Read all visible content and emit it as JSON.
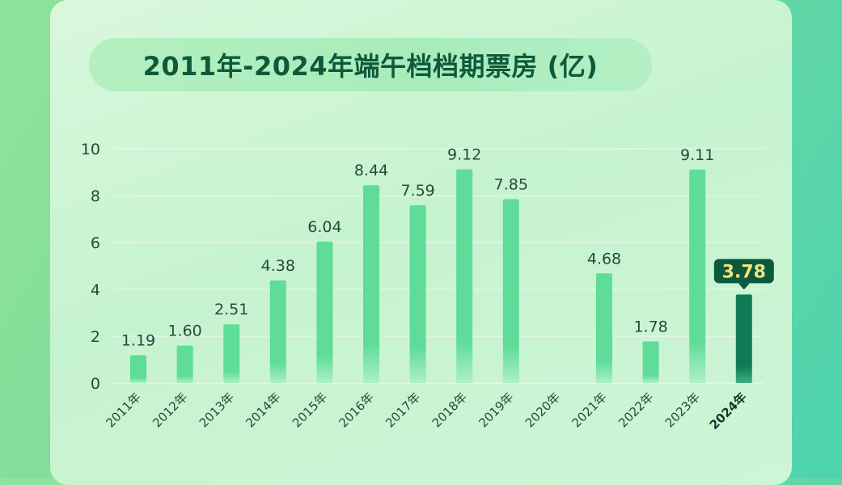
{
  "page": {
    "title": "2011年-2024年端午档档期票房 (亿)"
  },
  "colors": {
    "bar": "#5edc98",
    "bar_highlight": "#0f7a55",
    "callout_bg": "#0b5a40",
    "callout_text": "#f6e27a",
    "text": "#244b3b",
    "grid": "#e4f6e8"
  },
  "chart_data": {
    "type": "bar",
    "title": "2011年-2024年端午档档期票房 (亿)",
    "xlabel": "",
    "ylabel": "",
    "ylim": [
      0,
      10
    ],
    "yticks": [
      0,
      2,
      4,
      6,
      8,
      10
    ],
    "grid": true,
    "categories": [
      "2011年",
      "2012年",
      "2013年",
      "2014年",
      "2015年",
      "2016年",
      "2017年",
      "2018年",
      "2019年",
      "2020年",
      "2021年",
      "2022年",
      "2023年",
      "2024年"
    ],
    "values": [
      1.19,
      1.6,
      2.51,
      4.38,
      6.04,
      8.44,
      7.59,
      9.12,
      7.85,
      null,
      4.68,
      1.78,
      9.11,
      3.78
    ],
    "data_labels": [
      "1.19",
      "1.60",
      "2.51",
      "4.38",
      "6.04",
      "8.44",
      "7.59",
      "9.12",
      "7.85",
      "",
      "4.68",
      "1.78",
      "9.11",
      "3.78"
    ],
    "highlight_index": 13
  }
}
